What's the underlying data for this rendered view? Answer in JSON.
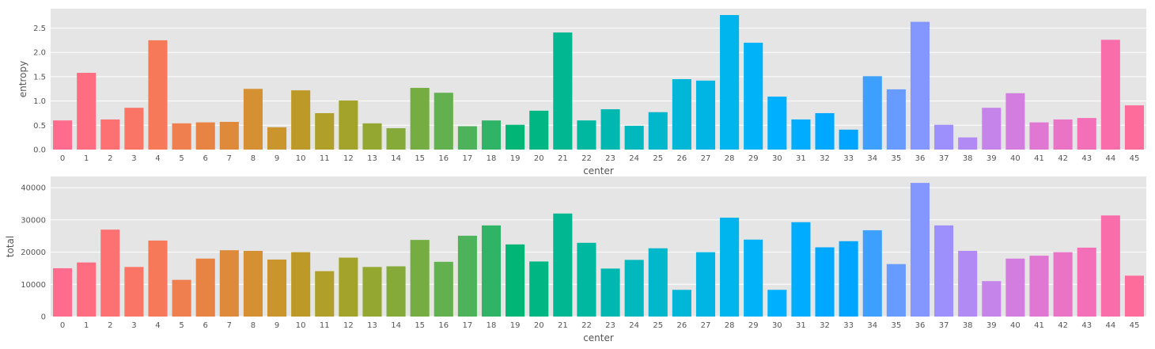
{
  "chart_data": [
    {
      "type": "bar",
      "title": "",
      "xlabel": "center",
      "ylabel": "entropy",
      "categories": [
        "0",
        "1",
        "2",
        "3",
        "4",
        "5",
        "6",
        "7",
        "8",
        "9",
        "10",
        "11",
        "12",
        "13",
        "14",
        "15",
        "16",
        "17",
        "18",
        "19",
        "20",
        "21",
        "22",
        "23",
        "24",
        "25",
        "26",
        "27",
        "28",
        "29",
        "30",
        "31",
        "32",
        "33",
        "34",
        "35",
        "36",
        "37",
        "38",
        "39",
        "40",
        "41",
        "42",
        "43",
        "44",
        "45"
      ],
      "values": [
        0.6,
        1.58,
        0.62,
        0.86,
        2.25,
        0.54,
        0.56,
        0.57,
        1.25,
        0.46,
        1.22,
        0.75,
        1.01,
        0.54,
        0.44,
        1.27,
        1.17,
        0.48,
        0.6,
        0.51,
        0.8,
        2.41,
        0.6,
        0.83,
        0.49,
        0.77,
        1.45,
        1.42,
        2.77,
        2.2,
        1.09,
        0.62,
        0.75,
        0.41,
        1.51,
        1.24,
        2.63,
        0.51,
        0.25,
        0.86,
        1.16,
        0.56,
        0.62,
        0.65,
        2.26,
        0.91
      ],
      "ylim": [
        0,
        2.9
      ],
      "yticks": [
        0.0,
        0.5,
        1.0,
        1.5,
        2.0,
        2.5
      ],
      "ytick_labels": [
        "0.0",
        "0.5",
        "1.0",
        "1.5",
        "2.0",
        "2.5"
      ],
      "grid": true
    },
    {
      "type": "bar",
      "title": "",
      "xlabel": "center",
      "ylabel": "total",
      "categories": [
        "0",
        "1",
        "2",
        "3",
        "4",
        "5",
        "6",
        "7",
        "8",
        "9",
        "10",
        "11",
        "12",
        "13",
        "14",
        "15",
        "16",
        "17",
        "18",
        "19",
        "20",
        "21",
        "22",
        "23",
        "24",
        "25",
        "26",
        "27",
        "28",
        "29",
        "30",
        "31",
        "32",
        "33",
        "34",
        "35",
        "36",
        "37",
        "38",
        "39",
        "40",
        "41",
        "42",
        "43",
        "44",
        "45"
      ],
      "values": [
        15000,
        16800,
        27000,
        15400,
        23600,
        11400,
        18000,
        20600,
        20400,
        17700,
        20000,
        14100,
        18300,
        15400,
        15600,
        23800,
        17000,
        25100,
        28300,
        22400,
        17100,
        32000,
        22900,
        14900,
        17600,
        21200,
        8300,
        20000,
        30700,
        23900,
        8300,
        29300,
        21500,
        23400,
        26800,
        16300,
        41500,
        28300,
        20400,
        11000,
        18000,
        18900,
        20000,
        21400,
        31400,
        12700
      ],
      "ylim": [
        0,
        43500
      ],
      "yticks": [
        0,
        10000,
        20000,
        30000,
        40000
      ],
      "ytick_labels": [
        "0",
        "10000",
        "20000",
        "30000",
        "40000"
      ],
      "grid": true
    }
  ]
}
